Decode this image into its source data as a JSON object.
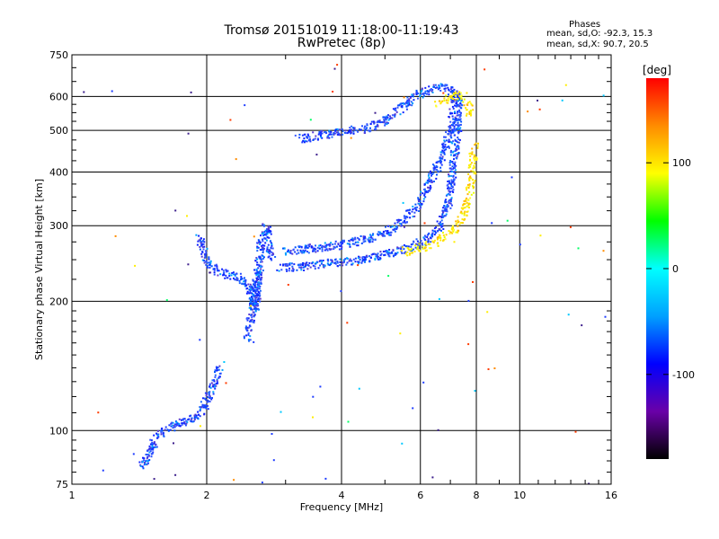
{
  "header": {
    "title_line1": "Tromsø 20151019 11:18:00-11:19:43",
    "title_line2": "RwPretec (8p)",
    "phases_title": "Phases",
    "phases_o": "mean, sd,O: -92.3, 15.3",
    "phases_x": "mean, sd,X:  90.7, 20.5"
  },
  "chart_data": {
    "type": "scatter",
    "title": "Tromsø 20151019 11:18:00-11:19:43",
    "subtitle": "RwPretec (8p)",
    "xlabel": "Frequency [MHz]",
    "ylabel": "Stationary phase Virtual Height [km]",
    "x_scale": "log2",
    "y_scale": "log",
    "xlim": [
      1,
      16
    ],
    "ylim": [
      75,
      750
    ],
    "x_ticks": [
      1,
      2,
      4,
      6,
      8,
      10,
      16
    ],
    "y_ticks": [
      75,
      100,
      200,
      300,
      400,
      500,
      600,
      750
    ],
    "grid": true,
    "colorbar": {
      "label": "[deg]",
      "range": [
        -180,
        180
      ],
      "ticks": [
        100,
        0,
        -100
      ],
      "colors": [
        "#000000",
        "#6a00a8",
        "#0000ff",
        "#00a0ff",
        "#00ffff",
        "#00ff00",
        "#ffff00",
        "#ff8c00",
        "#ff0000"
      ]
    },
    "series": [
      {
        "name": "O",
        "color": "#1e3cff",
        "segments": [
          {
            "x": [
              1.42,
              1.55,
              1.72,
              1.88,
              1.97,
              2.05,
              2.12
            ],
            "y": [
              82,
              98,
              104,
              108,
              115,
              125,
              140
            ]
          },
          {
            "x": [
              1.92,
              1.95,
              1.99,
              2.05,
              2.15,
              2.3,
              2.4,
              2.47,
              2.52,
              2.56,
              2.59,
              2.63,
              2.7,
              2.78
            ],
            "y": [
              285,
              268,
              250,
              240,
              234,
              230,
              226,
              218,
              205,
              192,
              220,
              270,
              300,
              255
            ]
          },
          {
            "x": [
              2.45,
              2.5,
              2.55,
              2.6
            ],
            "y": [
              165,
              185,
              210,
              240
            ]
          },
          {
            "x": [
              2.9,
              3.2,
              3.6,
              4.0,
              4.5,
              5.0,
              5.5,
              6.0,
              6.3,
              6.6,
              6.85,
              7.0,
              7.1,
              7.2,
              7.25,
              7.3
            ],
            "y": [
              240,
              242,
              246,
              248,
              252,
              258,
              265,
              275,
              285,
              300,
              330,
              380,
              430,
              480,
              540,
              590
            ]
          },
          {
            "x": [
              3.0,
              3.5,
              4.0,
              4.5,
              5.0,
              5.4,
              5.8,
              6.1,
              6.4,
              6.7,
              7.0,
              7.1,
              7.2
            ],
            "y": [
              262,
              268,
              272,
              280,
              290,
              305,
              330,
              360,
              400,
              440,
              500,
              560,
              620
            ]
          },
          {
            "x": [
              3.2,
              3.6,
              4.0,
              4.4,
              4.8,
              5.2,
              5.6,
              6.0,
              6.4,
              6.8,
              7.0,
              7.2
            ],
            "y": [
              480,
              490,
              500,
              505,
              520,
              545,
              585,
              615,
              630,
              635,
              620,
              600
            ]
          }
        ]
      },
      {
        "name": "X",
        "color": "#ffee00",
        "segments": [
          {
            "x": [
              5.5,
              6.0,
              6.5,
              7.0,
              7.3,
              7.5,
              7.7,
              7.8,
              7.85,
              7.9
            ],
            "y": [
              262,
              268,
              276,
              290,
              305,
              325,
              360,
              400,
              440,
              460
            ]
          },
          {
            "x": [
              6.5,
              7.0,
              7.4,
              7.6,
              7.7
            ],
            "y": [
              580,
              600,
              605,
              590,
              540
            ]
          }
        ]
      }
    ]
  }
}
